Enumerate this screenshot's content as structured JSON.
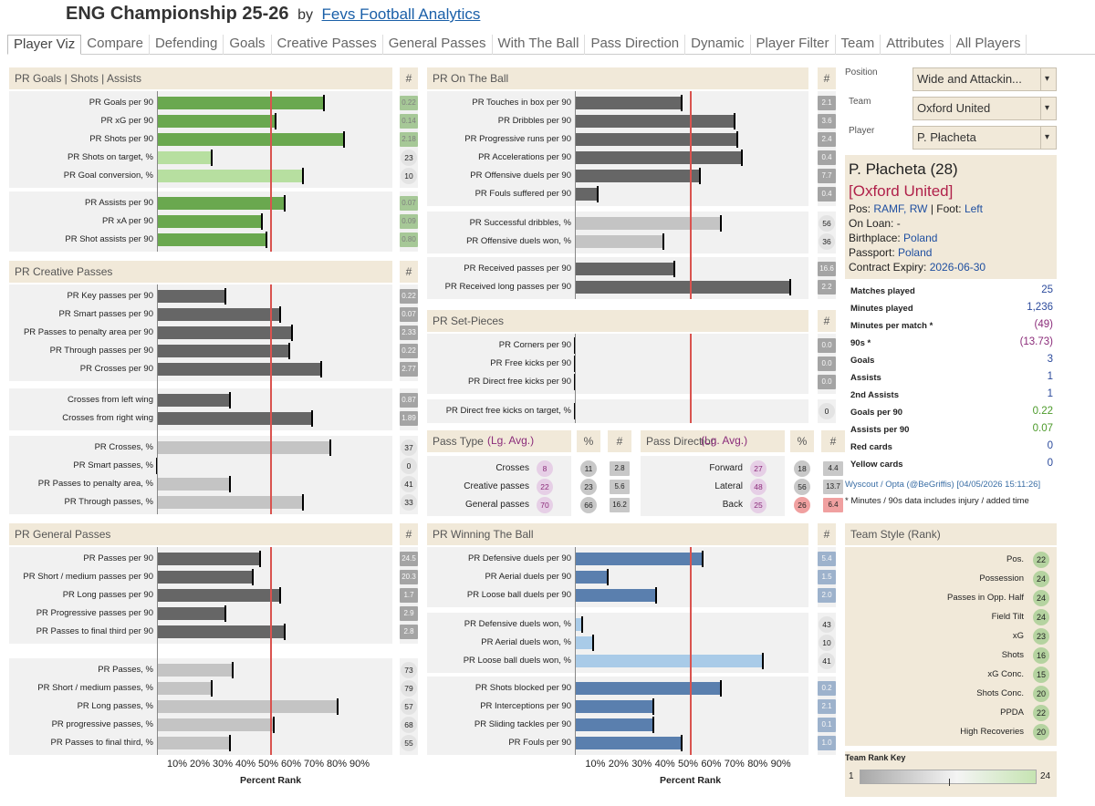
{
  "header": {
    "title": "ENG Championship 25-26",
    "by": "by",
    "link": "Fevs Football Analytics"
  },
  "tabs": [
    "Player Viz",
    "Compare",
    "Defending",
    "Goals",
    "Creative Passes",
    "General Passes",
    "With The Ball",
    "Pass Direction",
    "Dynamic",
    "Player Filter",
    "Team",
    "Attributes",
    "All Players"
  ],
  "colors": {
    "green": "#6aa84f",
    "lightgreen": "#b7dfa0",
    "darkgrey": "#666666",
    "lightgrey": "#c4c4c4",
    "blue": "#5a7fae",
    "lightblue": "#a9cbe8",
    "red": "#d9534f",
    "beige": "#f1e9d9"
  },
  "sections": [
    {
      "id": "goals",
      "title": "PR Goals | Shots | Assists",
      "num_header": "#",
      "groups": [
        [
          {
            "label": "PR Goals per 90",
            "pr": 73,
            "value": "0.22",
            "color": "green"
          },
          {
            "label": "PR xG per 90",
            "pr": 52,
            "value": "0.14",
            "color": "green"
          },
          {
            "label": "PR Shots per 90",
            "pr": 82,
            "value": "2.18",
            "color": "green"
          },
          {
            "label": "PR Shots on target, %",
            "pr": 24,
            "value": "23",
            "color": "lightgreen",
            "circle": true
          },
          {
            "label": "PR Goal conversion, %",
            "pr": 64,
            "value": "10",
            "color": "lightgreen",
            "circle": true
          }
        ],
        [
          {
            "label": "PR Assists per 90",
            "pr": 56,
            "value": "0.07",
            "color": "green"
          },
          {
            "label": "PR xA per 90",
            "pr": 46,
            "value": "0.09",
            "color": "green"
          },
          {
            "label": "PR Shot assists per 90",
            "pr": 48,
            "value": "0.80",
            "color": "green"
          }
        ]
      ]
    },
    {
      "id": "creative",
      "title": "PR Creative Passes",
      "num_header": "#",
      "groups": [
        [
          {
            "label": "PR Key passes per 90",
            "pr": 30,
            "value": "0.22",
            "color": "darkgrey"
          },
          {
            "label": "PR Smart passes per 90",
            "pr": 54,
            "value": "0.07",
            "color": "darkgrey"
          },
          {
            "label": "PR Passes to penalty area per 90",
            "pr": 59,
            "value": "2.33",
            "color": "darkgrey"
          },
          {
            "label": "PR Through passes per 90",
            "pr": 58,
            "value": "0.22",
            "color": "darkgrey"
          },
          {
            "label": "PR Crosses per 90",
            "pr": 72,
            "value": "2.77",
            "color": "darkgrey"
          }
        ],
        [
          {
            "label": "Crosses from left wing",
            "pr": 32,
            "value": "0.87",
            "color": "darkgrey"
          },
          {
            "label": "Crosses from right wing",
            "pr": 68,
            "value": "1.89",
            "color": "darkgrey"
          }
        ],
        [
          {
            "label": "PR Crosses, %",
            "pr": 76,
            "value": "37",
            "color": "lightgrey",
            "circle": true
          },
          {
            "label": "PR Smart passes, %",
            "pr": 0,
            "value": "0",
            "color": "lightgrey",
            "circle": true
          },
          {
            "label": "PR Passes to penalty area, %",
            "pr": 32,
            "value": "41",
            "color": "lightgrey",
            "circle": true
          },
          {
            "label": "PR Through passes, %",
            "pr": 64,
            "value": "33",
            "color": "lightgrey",
            "circle": true
          }
        ]
      ]
    },
    {
      "id": "general",
      "title": "PR General Passes",
      "num_header": "#",
      "groups": [
        [
          {
            "label": "PR Passes per 90",
            "pr": 45,
            "value": "24.5",
            "color": "darkgrey"
          },
          {
            "label": "PR Short / medium passes per 90",
            "pr": 42,
            "value": "20.3",
            "color": "darkgrey"
          },
          {
            "label": "PR Long passes per 90",
            "pr": 54,
            "value": "1.7",
            "color": "darkgrey"
          },
          {
            "label": "PR Progressive passes per 90",
            "pr": 30,
            "value": "2.9",
            "color": "darkgrey"
          },
          {
            "label": "PR Passes to final third per 90",
            "pr": 56,
            "value": "2.8",
            "color": "darkgrey"
          }
        ],
        [
          {
            "label": "PR Passes, %",
            "pr": 33,
            "value": "73",
            "color": "lightgrey",
            "circle": true
          },
          {
            "label": "PR Short / medium passes, %",
            "pr": 24,
            "value": "79",
            "color": "lightgrey",
            "circle": true
          },
          {
            "label": "PR Long passes, %",
            "pr": 79,
            "value": "57",
            "color": "lightgrey",
            "circle": true
          },
          {
            "label": "PR progressive passes, %",
            "pr": 51,
            "value": "68",
            "color": "lightgrey",
            "circle": true
          },
          {
            "label": "PR Passes to final third, %",
            "pr": 32,
            "value": "55",
            "color": "lightgrey",
            "circle": true
          }
        ]
      ]
    },
    {
      "id": "ontheball",
      "title": "PR On The Ball",
      "num_header": "#",
      "groups": [
        [
          {
            "label": "PR Touches in box per 90",
            "pr": 46,
            "value": "2.1",
            "color": "darkgrey"
          },
          {
            "label": "PR Dribbles per 90",
            "pr": 69,
            "value": "3.6",
            "color": "darkgrey"
          },
          {
            "label": "PR Progressive runs per 90",
            "pr": 70,
            "value": "2.4",
            "color": "darkgrey"
          },
          {
            "label": "PR Accelerations per 90",
            "pr": 72,
            "value": "0.4",
            "color": "darkgrey"
          },
          {
            "label": "PR Offensive duels per 90",
            "pr": 54,
            "value": "7.7",
            "color": "darkgrey"
          },
          {
            "label": "PR Fouls suffered per 90",
            "pr": 10,
            "value": "0.4",
            "color": "darkgrey"
          }
        ],
        [
          {
            "label": "PR Successful dribbles, %",
            "pr": 63,
            "value": "56",
            "color": "lightgrey",
            "circle": true
          },
          {
            "label": "PR Offensive duels won, %",
            "pr": 38,
            "value": "36",
            "color": "lightgrey",
            "circle": true
          }
        ],
        [
          {
            "label": "PR Received passes per 90",
            "pr": 43,
            "value": "16.6",
            "color": "darkgrey"
          },
          {
            "label": "PR Received long passes per 90",
            "pr": 93,
            "value": "2.2",
            "color": "darkgrey"
          }
        ]
      ]
    },
    {
      "id": "setpieces",
      "title": "PR Set-Pieces",
      "num_header": "#",
      "groups": [
        [
          {
            "label": "PR Corners per 90",
            "pr": 0,
            "value": "0.0",
            "color": "darkgrey"
          },
          {
            "label": "PR Free kicks per 90",
            "pr": 0,
            "value": "0.0",
            "color": "darkgrey"
          },
          {
            "label": "PR Direct free kicks per 90",
            "pr": 0,
            "value": "0.0",
            "color": "darkgrey"
          }
        ],
        [
          {
            "label": "PR Direct free kicks on target, %",
            "pr": 0,
            "value": "0",
            "color": "lightgrey",
            "circle": true
          }
        ]
      ]
    },
    {
      "id": "winning",
      "title": "PR Winning The Ball",
      "num_header": "#",
      "groups": [
        [
          {
            "label": "PR Defensive duels per 90",
            "pr": 55,
            "value": "5.4",
            "color": "blue"
          },
          {
            "label": "PR Aerial duels per 90",
            "pr": 14,
            "value": "1.5",
            "color": "blue"
          },
          {
            "label": "PR Loose ball duels per 90",
            "pr": 35,
            "value": "2.0",
            "color": "blue"
          }
        ],
        [
          {
            "label": "PR Defensive duels won, %",
            "pr": 3,
            "value": "43",
            "color": "lightblue",
            "circle": true
          },
          {
            "label": "PR Aerial duels won, %",
            "pr": 8,
            "value": "10",
            "color": "lightblue",
            "circle": true
          },
          {
            "label": "PR Loose ball duels won, %",
            "pr": 81,
            "value": "41",
            "color": "lightblue",
            "circle": true
          }
        ],
        [
          {
            "label": "PR Shots blocked per 90",
            "pr": 63,
            "value": "0.2",
            "color": "blue"
          },
          {
            "label": "PR Interceptions per 90",
            "pr": 34,
            "value": "2.1",
            "color": "blue"
          },
          {
            "label": "PR Sliding tackles per 90",
            "pr": 34,
            "value": "0.1",
            "color": "blue"
          },
          {
            "label": "PR Fouls per 90",
            "pr": 46,
            "value": "1.0",
            "color": "blue"
          }
        ]
      ]
    }
  ],
  "axis": {
    "ticks": [
      "10%",
      "20%",
      "30%",
      "40%",
      "50%",
      "60%",
      "70%",
      "80%",
      "90%"
    ],
    "title": "Percent Rank"
  },
  "pass_type": {
    "title": "Pass Type",
    "lg_avg": "(Lg. Avg.)",
    "pct": "%",
    "num": "#",
    "rows": [
      {
        "label": "Crosses",
        "avg": "8",
        "pct": "11",
        "num": "2.8"
      },
      {
        "label": "Creative passes",
        "avg": "22",
        "pct": "23",
        "num": "5.6"
      },
      {
        "label": "General passes",
        "avg": "70",
        "pct": "66",
        "num": "16.2"
      }
    ]
  },
  "pass_direction": {
    "title": "Pass Direction",
    "lg_avg": "(Lg. Avg.)",
    "pct": "%",
    "num": "#",
    "rows": [
      {
        "label": "Forward",
        "avg": "27",
        "pct": "18",
        "num": "4.4"
      },
      {
        "label": "Lateral",
        "avg": "48",
        "pct": "56",
        "num": "13.7"
      },
      {
        "label": "Back",
        "avg": "25",
        "pct": "26",
        "num": "6.4"
      }
    ]
  },
  "filters": {
    "position_label": "Position",
    "position_value": "Wide and Attackin...",
    "team_label": "Team",
    "team_value": "Oxford United",
    "player_label": "Player",
    "player_value": "P. Płacheta"
  },
  "player": {
    "name": "P. Płacheta (28)",
    "team": "[Oxford United]",
    "pos_label": "Pos:",
    "pos": "RAMF, RW",
    "foot_label": "| Foot:",
    "foot": "Left",
    "loan": "On Loan: -",
    "birth_label": "Birthplace:",
    "birth": "Poland",
    "passport_label": "Passport:",
    "passport": "Poland",
    "contract_label": "Contract Expiry:",
    "contract": "2026-06-30"
  },
  "stats": [
    {
      "label": "Matches played",
      "value": "25",
      "color": "#2b4a9c"
    },
    {
      "label": "Minutes played",
      "value": "1,236",
      "color": "#2b4a9c"
    },
    {
      "label": "Minutes per match *",
      "value": "(49)",
      "color": "#8b2c7a"
    },
    {
      "label": "90s *",
      "value": "(13.73)",
      "color": "#8b2c7a"
    },
    {
      "label": "Goals",
      "value": "3",
      "color": "#2b4a9c"
    },
    {
      "label": "Assists",
      "value": "1",
      "color": "#2b4a9c"
    },
    {
      "label": "2nd Assists",
      "value": "1",
      "color": "#2b4a9c"
    },
    {
      "label": "Goals per 90",
      "value": "0.22",
      "color": "#4c9a2a"
    },
    {
      "label": "Assists per 90",
      "value": "0.07",
      "color": "#4c9a2a"
    },
    {
      "label": "Red cards",
      "value": "0",
      "color": "#2b4a9c"
    },
    {
      "label": "Yellow cards",
      "value": "0",
      "color": "#2b4a9c"
    }
  ],
  "source": "Wyscout / Opta (@BeGriffis) [04/05/2026 15:11:26]",
  "footnote": "* Minutes / 90s data includes injury / added time",
  "team_style": {
    "title": "Team Style (Rank)",
    "rows": [
      {
        "label": "Pos.",
        "rank": "22"
      },
      {
        "label": "Possession",
        "rank": "24"
      },
      {
        "label": "Passes in Opp. Half",
        "rank": "24"
      },
      {
        "label": "Field Tilt",
        "rank": "24"
      },
      {
        "label": "xG",
        "rank": "23"
      },
      {
        "label": "Shots",
        "rank": "16"
      },
      {
        "label": "xG Conc.",
        "rank": "15"
      },
      {
        "label": "Shots Conc.",
        "rank": "20"
      },
      {
        "label": "PPDA",
        "rank": "22"
      },
      {
        "label": "High Recoveries",
        "rank": "20"
      }
    ]
  },
  "rank_key": {
    "title": "Team Rank Key",
    "min": "1",
    "max": "24"
  }
}
